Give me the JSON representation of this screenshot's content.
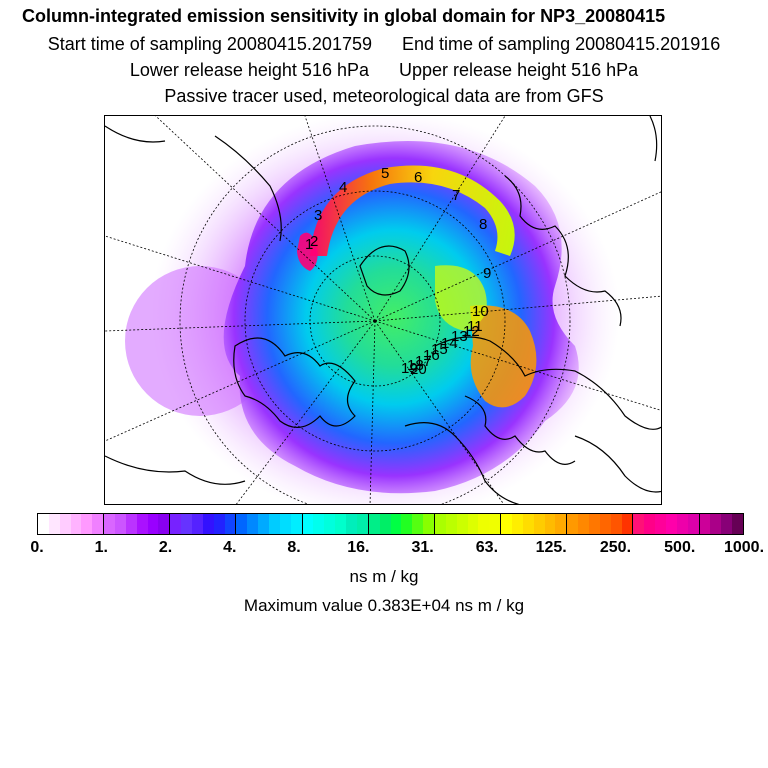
{
  "header": {
    "title": "Column-integrated emission sensitivity in global domain for NP3_20080415",
    "start_time": "Start time of sampling 20080415.201759",
    "end_time": "End time of sampling 20080415.201916",
    "lower_release": "Lower release height  516 hPa",
    "upper_release": "Upper release height  516 hPa",
    "tracer_note": "Passive tracer used, meteorological data are from GFS"
  },
  "map": {
    "projection": "polar stereographic (north)",
    "trajectory_labels": [
      "1",
      "2",
      "3",
      "4",
      "5",
      "6",
      "7",
      "8",
      "9",
      "10",
      "11",
      "12",
      "13",
      "14",
      "15",
      "16",
      "17",
      "18",
      "19",
      "20"
    ],
    "colors": {
      "coastline": "#000000",
      "grid": "#000000",
      "field_low": "#cc66ff",
      "field_mid": "#22dd88",
      "field_high": "#ff9900",
      "field_peak": "#ff0077"
    }
  },
  "colorbar": {
    "ticks": [
      "0.",
      "1.",
      "2.",
      "4.",
      "8.",
      "16.",
      "31.",
      "63.",
      "125.",
      "250.",
      "500.",
      "1000."
    ],
    "colors": [
      "#ffffff",
      "#ffe6ff",
      "#ffccff",
      "#ffb3ff",
      "#ff99ff",
      "#f080ff",
      "#d966ff",
      "#cc55ff",
      "#bb33ff",
      "#aa11ff",
      "#9900ff",
      "#8800f0",
      "#7722ff",
      "#6633ff",
      "#5522ff",
      "#3311ff",
      "#2222ff",
      "#1144ff",
      "#0066ff",
      "#0088ff",
      "#00aaff",
      "#00ccff",
      "#00ddff",
      "#00eeff",
      "#00ffff",
      "#00ffee",
      "#00ffdd",
      "#00ffcc",
      "#00eebb",
      "#00eeaa",
      "#00ee88",
      "#00ee66",
      "#00ff44",
      "#22ff22",
      "#55ff11",
      "#88ff00",
      "#aaff00",
      "#bbff00",
      "#ccff00",
      "#ddff00",
      "#eeff00",
      "#f0ff00",
      "#ffff00",
      "#ffee00",
      "#ffdd00",
      "#ffcc00",
      "#ffbb00",
      "#ffaa00",
      "#ff9900",
      "#ff8800",
      "#ff7700",
      "#ff6600",
      "#ff5500",
      "#ff3300",
      "#ff1177",
      "#ff0088",
      "#ff0099",
      "#ff00aa",
      "#ee00aa",
      "#dd00aa",
      "#cc0099",
      "#aa0088",
      "#880077",
      "#660055"
    ],
    "units": "ns m / kg",
    "max_value": "Maximum value  0.383E+04 ns m / kg"
  }
}
